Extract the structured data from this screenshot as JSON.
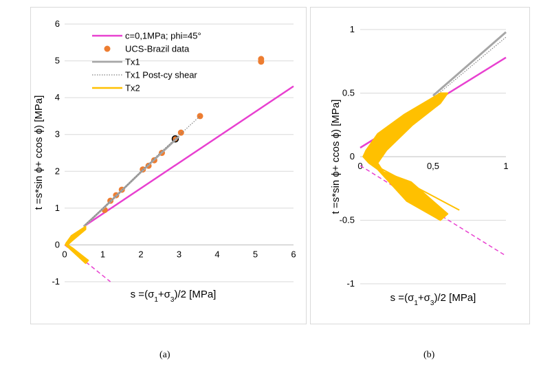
{
  "colors": {
    "mohr_coulomb": "#e840d0",
    "ucs_brazil": "#ed7d31",
    "tx1": "#a6a6a6",
    "tx1_post": "#7f7f7f",
    "tx2": "#ffc000",
    "gridline": "#d9d9d9"
  },
  "captions": {
    "a": "(a)",
    "b": "(b)"
  },
  "chart_data": [
    {
      "id": "a",
      "type": "scatter",
      "xlabel_parts": [
        "s =(σ",
        "1",
        "+σ",
        "3",
        ")/2 [MPa]"
      ],
      "ylabel": "t =s*sin ϕ+ ccos ϕ) [MPa]",
      "xlim": [
        0,
        6
      ],
      "ylim": [
        -1,
        6
      ],
      "xticks": [
        "0",
        "1",
        "2",
        "3",
        "4",
        "5",
        "6"
      ],
      "yticks": [
        "-1",
        "0",
        "1",
        "2",
        "3",
        "4",
        "5",
        "6"
      ],
      "legend": [
        "c=0,1MPa; phi=45°",
        "UCS-Brazil data",
        "Tx1",
        "Tx1 Post-cy shear",
        "Tx2"
      ],
      "series": [
        {
          "name": "c=0,1MPa; phi=45°",
          "kind": "line",
          "style": "solid",
          "x": [
            0.5,
            6.0
          ],
          "y": [
            0.5,
            4.31
          ]
        },
        {
          "name": "c=0,1MPa; phi=45° (extension)",
          "kind": "line",
          "style": "dashed",
          "x": [
            0.0,
            1.2
          ],
          "y": [
            0.0,
            -1.0
          ]
        },
        {
          "name": "UCS-Brazil data",
          "kind": "points",
          "x": [
            1.05,
            1.2,
            1.35,
            1.5,
            2.05,
            2.2,
            2.35,
            2.55,
            2.9,
            3.05,
            3.55,
            5.15,
            5.15
          ],
          "y": [
            0.95,
            1.2,
            1.35,
            1.5,
            2.05,
            2.15,
            2.3,
            2.5,
            2.88,
            3.05,
            3.5,
            5.05,
            4.98
          ],
          "highlight_index": 8
        },
        {
          "name": "Tx1",
          "kind": "line",
          "style": "solid",
          "x": [
            0.5,
            1.0,
            2.0,
            3.0
          ],
          "y": [
            0.5,
            0.98,
            1.98,
            2.95
          ]
        },
        {
          "name": "Tx1 Post-cy shear",
          "kind": "line",
          "style": "dotted",
          "x": [
            0.55,
            1.5,
            2.5,
            3.55
          ],
          "y": [
            0.55,
            1.48,
            2.5,
            3.5
          ]
        },
        {
          "name": "Tx2",
          "kind": "band",
          "style": "solid",
          "x": [
            0.55,
            0.18,
            0.04,
            0.02,
            0.08,
            0.55,
            0.62,
            0.2,
            0.08,
            0.18,
            0.55
          ],
          "y": [
            0.5,
            0.25,
            0.05,
            0.0,
            -0.05,
            -0.5,
            -0.42,
            -0.08,
            0.0,
            0.1,
            0.42
          ]
        }
      ]
    },
    {
      "id": "b",
      "type": "scatter",
      "xlabel_parts": [
        "s =(σ",
        "1",
        "+σ",
        "3",
        ")/2 [MPa]"
      ],
      "ylabel": "t =s*sin ϕ+ ccos ϕ) [MPa]",
      "xlim": [
        0,
        1
      ],
      "ylim": [
        -1,
        1
      ],
      "xticks": [
        "0",
        "0,5",
        "1"
      ],
      "yticks": [
        "-1",
        "-0.5",
        "0",
        "0.5",
        "1"
      ],
      "series": [
        {
          "name": "c=0,1MPa; phi=45°",
          "kind": "line",
          "style": "solid",
          "x": [
            0.0,
            1.0
          ],
          "y": [
            0.07,
            0.78
          ]
        },
        {
          "name": "c=0,1MPa; phi=45° (extension)",
          "kind": "line",
          "style": "dashed",
          "x": [
            0.0,
            1.0
          ],
          "y": [
            -0.07,
            -0.78
          ]
        },
        {
          "name": "Tx1",
          "kind": "line",
          "style": "solid",
          "x": [
            0.5,
            1.0
          ],
          "y": [
            0.48,
            0.98
          ]
        },
        {
          "name": "Tx1 Post-cy shear",
          "kind": "line",
          "style": "dotted",
          "x": [
            0.5,
            1.0
          ],
          "y": [
            0.46,
            0.94
          ]
        },
        {
          "name": "Tx2",
          "kind": "band",
          "style": "solid",
          "x": [
            0.6,
            0.55,
            0.3,
            0.12,
            0.04,
            0.02,
            0.06,
            0.12,
            0.32,
            0.55,
            0.6,
            0.35,
            0.16,
            0.12,
            0.18,
            0.36,
            0.55
          ],
          "y": [
            0.5,
            0.5,
            0.33,
            0.18,
            0.05,
            0.0,
            -0.05,
            -0.1,
            -0.35,
            -0.5,
            -0.45,
            -0.2,
            -0.12,
            -0.05,
            0.05,
            0.25,
            0.42
          ]
        },
        {
          "name": "Tx2 branch",
          "kind": "line",
          "style": "solid",
          "x": [
            0.12,
            0.4,
            0.68
          ],
          "y": [
            -0.08,
            -0.25,
            -0.42
          ]
        }
      ]
    }
  ]
}
